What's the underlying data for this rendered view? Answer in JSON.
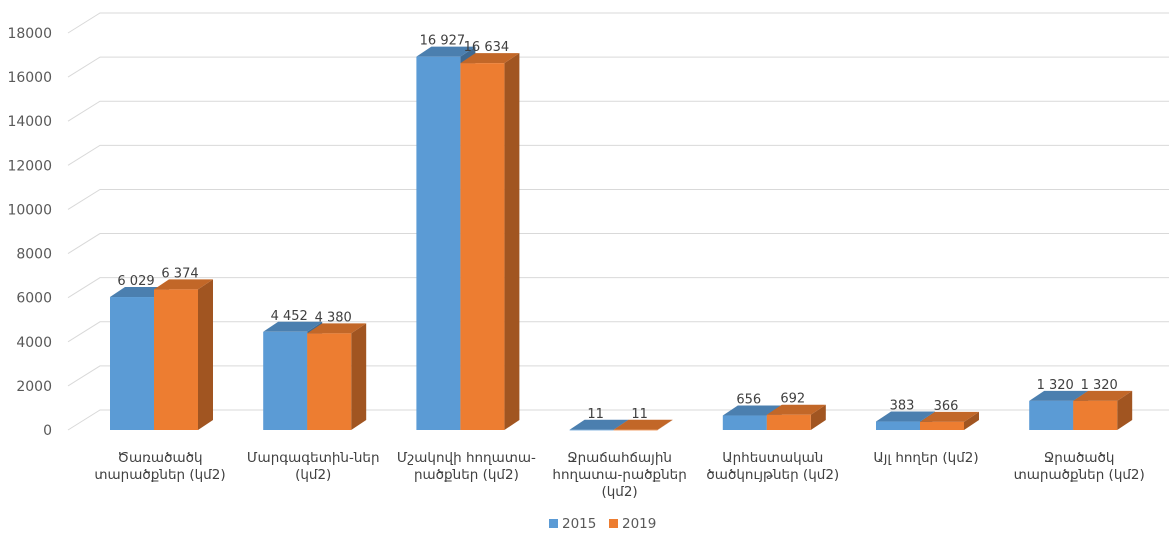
{
  "chart_data": {
    "type": "bar",
    "style": "3d-clustered-column",
    "categories": [
      [
        "Ծառածածկ",
        "տարածքներ (կմ2)"
      ],
      [
        "Մարգագետին-ներ",
        "(կմ2)"
      ],
      [
        "Մշակովի հողատա-",
        "րածքներ (կմ2)"
      ],
      [
        "Ջրաճահճային",
        "հողատա-րածքներ",
        "(կմ2)"
      ],
      [
        "Արհեստական",
        "ծածկույթներ (կմ2)"
      ],
      [
        "Այլ հողեր (կմ2)"
      ],
      [
        "Ջրածածկ",
        "տարածքներ (կմ2)"
      ]
    ],
    "series": [
      {
        "name": "2015",
        "color": "#5b9bd5",
        "values": [
          6029,
          4452,
          16927,
          11,
          656,
          383,
          1320
        ],
        "labels": [
          "6 029",
          "4 452",
          "16 927",
          "11",
          "656",
          "383",
          "1 320"
        ]
      },
      {
        "name": "2019",
        "color": "#ed7d31",
        "values": [
          6374,
          4380,
          16634,
          11,
          692,
          366,
          1320
        ],
        "labels": [
          "6 374",
          "4 380",
          "16 634",
          "11",
          "692",
          "366",
          "1 320"
        ]
      }
    ],
    "y_ticks": [
      "0",
      "2000",
      "4000",
      "6000",
      "8000",
      "10000",
      "12000",
      "14000",
      "16000",
      "18000"
    ],
    "ylim": [
      0,
      18000
    ],
    "grid": true,
    "legend_position": "bottom"
  }
}
